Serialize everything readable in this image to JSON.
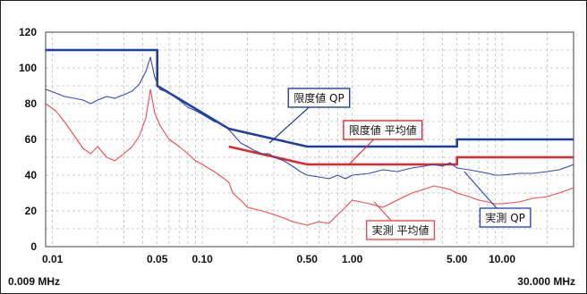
{
  "chart_data": {
    "type": "line",
    "x_scale": "log",
    "xlim": [
      0.009,
      30
    ],
    "ylim": [
      0,
      120
    ],
    "yticks": [
      0,
      20,
      40,
      60,
      80,
      100,
      120
    ],
    "xticks": [
      {
        "value": 0.01,
        "label": "0.01"
      },
      {
        "value": 0.05,
        "label": "0.05"
      },
      {
        "value": 0.1,
        "label": "0.10"
      },
      {
        "value": 0.5,
        "label": "0.50"
      },
      {
        "value": 1.0,
        "label": "1.00"
      },
      {
        "value": 5.0,
        "label": "5.00"
      },
      {
        "value": 10.0,
        "label": "10.00"
      }
    ],
    "x_start_label": "0.009 MHz",
    "x_end_label": "30.000 MHz",
    "grid": true,
    "colors": {
      "qp_limit": "#1f3fa0",
      "avg_limit": "#e0282b",
      "qp_measured": "#3049b5",
      "avg_measured": "#ee4a4d"
    },
    "series": [
      {
        "name": "限度値 QP",
        "color_key": "qp_limit",
        "points": [
          [
            0.009,
            110
          ],
          [
            0.05,
            110
          ],
          [
            0.05,
            90
          ],
          [
            0.15,
            66
          ],
          [
            0.5,
            56
          ],
          [
            5,
            56
          ],
          [
            5,
            60
          ],
          [
            30,
            60
          ]
        ]
      },
      {
        "name": "限度値 平均値",
        "color_key": "avg_limit",
        "points": [
          [
            0.15,
            56
          ],
          [
            0.5,
            46
          ],
          [
            5,
            46
          ],
          [
            5,
            50
          ],
          [
            30,
            50
          ]
        ]
      },
      {
        "name": "実測 QP",
        "color_key": "qp_measured",
        "points": [
          [
            0.009,
            88
          ],
          [
            0.0105,
            86
          ],
          [
            0.012,
            84
          ],
          [
            0.014,
            83
          ],
          [
            0.016,
            82
          ],
          [
            0.018,
            80
          ],
          [
            0.02,
            82
          ],
          [
            0.023,
            84
          ],
          [
            0.026,
            83
          ],
          [
            0.03,
            85
          ],
          [
            0.034,
            87
          ],
          [
            0.038,
            91
          ],
          [
            0.042,
            98
          ],
          [
            0.045,
            106
          ],
          [
            0.048,
            95
          ],
          [
            0.052,
            88
          ],
          [
            0.06,
            86
          ],
          [
            0.07,
            82
          ],
          [
            0.08,
            78
          ],
          [
            0.09,
            76
          ],
          [
            0.1,
            74
          ],
          [
            0.12,
            70
          ],
          [
            0.14,
            68
          ],
          [
            0.16,
            63
          ],
          [
            0.18,
            58
          ],
          [
            0.2,
            56
          ],
          [
            0.22,
            54
          ],
          [
            0.25,
            52
          ],
          [
            0.28,
            52
          ],
          [
            0.3,
            50
          ],
          [
            0.35,
            48
          ],
          [
            0.4,
            45
          ],
          [
            0.45,
            42
          ],
          [
            0.5,
            40
          ],
          [
            0.6,
            39
          ],
          [
            0.7,
            38
          ],
          [
            0.8,
            40
          ],
          [
            0.9,
            38
          ],
          [
            1.0,
            40
          ],
          [
            1.3,
            41
          ],
          [
            1.6,
            43
          ],
          [
            2.0,
            42
          ],
          [
            2.5,
            44
          ],
          [
            3.0,
            45
          ],
          [
            3.5,
            46
          ],
          [
            4.0,
            45
          ],
          [
            4.5,
            47
          ],
          [
            5.0,
            44
          ],
          [
            6.0,
            43
          ],
          [
            7.0,
            42
          ],
          [
            8.0,
            41
          ],
          [
            9.0,
            40
          ],
          [
            10,
            40
          ],
          [
            13,
            41
          ],
          [
            16,
            41
          ],
          [
            20,
            42
          ],
          [
            24,
            43
          ],
          [
            28,
            45
          ],
          [
            30,
            46
          ]
        ]
      },
      {
        "name": "実測 平均値",
        "color_key": "avg_measured",
        "points": [
          [
            0.009,
            80
          ],
          [
            0.0105,
            76
          ],
          [
            0.012,
            70
          ],
          [
            0.014,
            62
          ],
          [
            0.016,
            55
          ],
          [
            0.018,
            52
          ],
          [
            0.02,
            56
          ],
          [
            0.023,
            50
          ],
          [
            0.026,
            48
          ],
          [
            0.03,
            52
          ],
          [
            0.034,
            56
          ],
          [
            0.038,
            62
          ],
          [
            0.042,
            72
          ],
          [
            0.045,
            88
          ],
          [
            0.048,
            75
          ],
          [
            0.052,
            68
          ],
          [
            0.06,
            60
          ],
          [
            0.07,
            56
          ],
          [
            0.08,
            52
          ],
          [
            0.09,
            48
          ],
          [
            0.1,
            46
          ],
          [
            0.12,
            42
          ],
          [
            0.14,
            38
          ],
          [
            0.15,
            36
          ],
          [
            0.16,
            30
          ],
          [
            0.18,
            26
          ],
          [
            0.2,
            22
          ],
          [
            0.25,
            20
          ],
          [
            0.3,
            18
          ],
          [
            0.35,
            16
          ],
          [
            0.4,
            14
          ],
          [
            0.5,
            12
          ],
          [
            0.6,
            14
          ],
          [
            0.7,
            13
          ],
          [
            0.8,
            18
          ],
          [
            0.9,
            22
          ],
          [
            1.0,
            26
          ],
          [
            1.3,
            24
          ],
          [
            1.6,
            22
          ],
          [
            2.0,
            26
          ],
          [
            2.5,
            30
          ],
          [
            3.0,
            32
          ],
          [
            3.5,
            34
          ],
          [
            4.0,
            33
          ],
          [
            4.5,
            32
          ],
          [
            5.0,
            30
          ],
          [
            6.0,
            28
          ],
          [
            7.0,
            26
          ],
          [
            8.0,
            25
          ],
          [
            9.0,
            24
          ],
          [
            10,
            24
          ],
          [
            13,
            25
          ],
          [
            16,
            27
          ],
          [
            20,
            28
          ],
          [
            24,
            30
          ],
          [
            28,
            32
          ],
          [
            30,
            33
          ]
        ]
      }
    ],
    "annotations": [
      {
        "text": "限度値 QP",
        "color_key": "qp_limit",
        "x": 0.6,
        "y": 83,
        "anchor_x": 0.28,
        "anchor_y": 58
      },
      {
        "text": "限度値 平均値",
        "color_key": "avg_limit",
        "x": 1.6,
        "y": 65,
        "anchor_x": 0.95,
        "anchor_y": 46
      },
      {
        "text": "実測 QP",
        "color_key": "qp_measured",
        "x": 10.5,
        "y": 16,
        "anchor_x": 5.6,
        "anchor_y": 42
      },
      {
        "text": "実測 平均値",
        "color_key": "avg_measured",
        "x": 2.1,
        "y": 9,
        "anchor_x": 1.4,
        "anchor_y": 25
      }
    ]
  }
}
